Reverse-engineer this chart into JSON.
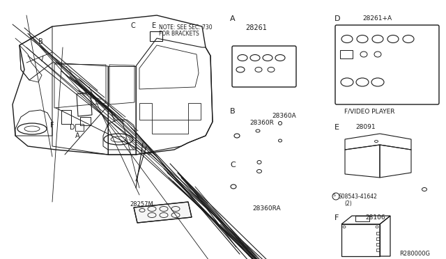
{
  "bg_color": "#ffffff",
  "line_color": "#1a1a1a",
  "text_color": "#1a1a1a",
  "fig_width": 6.4,
  "fig_height": 3.72,
  "dpi": 100,
  "labels": {
    "part_A_label": "A",
    "part_A_num": "28261",
    "part_B_label": "B",
    "part_B_num1": "28360A",
    "part_B_num2": "28360R",
    "part_C_label": "C",
    "part_C_num": "28360RA",
    "part_D_label": "D",
    "part_D_num": "28261+A",
    "part_D_sub": "F/VIDEO PLAYER",
    "part_E_label": "E",
    "part_E_num": "28091",
    "part_E_sub1": "S08543-41642",
    "part_E_sub2": "(2)",
    "part_F_label": "F",
    "part_F_num": "28106",
    "car_B": "B",
    "car_C": "C",
    "car_E": "E",
    "car_F": "F",
    "car_D": "D",
    "car_A": "A",
    "note_line1": "NOTE: SEE SEC. 730",
    "note_line2": "FOR BRACKETS",
    "remote_num": "28257M",
    "ref": "R280000G"
  }
}
